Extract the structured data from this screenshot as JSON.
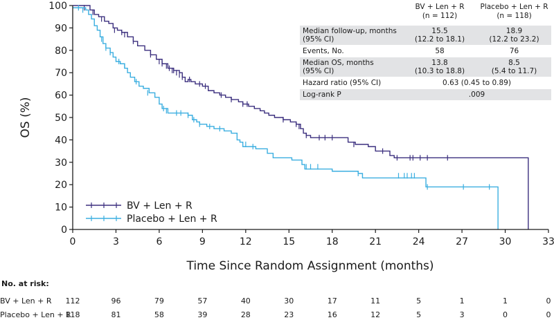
{
  "chart_data": {
    "type": "line",
    "subtype": "kaplan-meier",
    "xlabel": "Time Since Random Assignment (months)",
    "ylabel": "OS (%)",
    "xlim": [
      0,
      33
    ],
    "ylim": [
      0,
      100
    ],
    "xticks": [
      "0",
      "3",
      "6",
      "9",
      "12",
      "15",
      "18",
      "21",
      "24",
      "27",
      "30",
      "33"
    ],
    "yticks": [
      "0",
      "10",
      "20",
      "30",
      "40",
      "50",
      "60",
      "70",
      "80",
      "90",
      "100"
    ],
    "legend_position": "bottom-left",
    "series": [
      {
        "name": "BV + Len + R",
        "color": "#3b2f7e",
        "steps": [
          [
            0,
            100
          ],
          [
            1.2,
            98
          ],
          [
            1.5,
            96
          ],
          [
            1.8,
            95
          ],
          [
            2.2,
            93
          ],
          [
            2.5,
            92
          ],
          [
            2.8,
            90
          ],
          [
            3.1,
            89
          ],
          [
            3.4,
            88
          ],
          [
            3.8,
            86
          ],
          [
            4.2,
            84
          ],
          [
            4.5,
            82
          ],
          [
            5.0,
            80
          ],
          [
            5.4,
            78
          ],
          [
            5.8,
            76
          ],
          [
            6.2,
            74
          ],
          [
            6.6,
            72
          ],
          [
            7.0,
            71
          ],
          [
            7.4,
            70
          ],
          [
            7.6,
            68
          ],
          [
            7.8,
            66
          ],
          [
            8.0,
            67
          ],
          [
            8.2,
            66
          ],
          [
            8.5,
            65
          ],
          [
            9.0,
            64
          ],
          [
            9.4,
            62
          ],
          [
            9.8,
            61
          ],
          [
            10.2,
            60
          ],
          [
            10.6,
            59
          ],
          [
            11.0,
            58
          ],
          [
            11.5,
            57
          ],
          [
            11.8,
            56
          ],
          [
            12.2,
            55
          ],
          [
            12.6,
            54
          ],
          [
            13.0,
            53
          ],
          [
            13.3,
            52
          ],
          [
            13.6,
            51
          ],
          [
            14.0,
            50
          ],
          [
            14.6,
            49
          ],
          [
            15.1,
            48
          ],
          [
            15.5,
            47
          ],
          [
            15.8,
            45
          ],
          [
            16.0,
            43
          ],
          [
            16.2,
            42
          ],
          [
            16.5,
            41
          ],
          [
            19.1,
            39
          ],
          [
            19.6,
            38
          ],
          [
            20.5,
            37
          ],
          [
            21.0,
            35
          ],
          [
            22.0,
            33
          ],
          [
            22.3,
            32
          ],
          [
            31.6,
            0
          ]
        ],
        "censored": [
          [
            0.8,
            99
          ],
          [
            1.4,
            97
          ],
          [
            2.0,
            94
          ],
          [
            2.9,
            89
          ],
          [
            3.4,
            88
          ],
          [
            3.6,
            87
          ],
          [
            4.2,
            84
          ],
          [
            5.4,
            78
          ],
          [
            6.0,
            75
          ],
          [
            6.2,
            74
          ],
          [
            6.5,
            73
          ],
          [
            6.7,
            72
          ],
          [
            6.9,
            71
          ],
          [
            7.0,
            71
          ],
          [
            7.2,
            70
          ],
          [
            7.4,
            69
          ],
          [
            7.6,
            68
          ],
          [
            8.1,
            67
          ],
          [
            8.8,
            65
          ],
          [
            9.2,
            64
          ],
          [
            10.3,
            60
          ],
          [
            11.0,
            58
          ],
          [
            11.8,
            56
          ],
          [
            12.1,
            56
          ],
          [
            14.6,
            49
          ],
          [
            15.5,
            47
          ],
          [
            15.7,
            46
          ],
          [
            16.2,
            42
          ],
          [
            17.1,
            41
          ],
          [
            17.5,
            41
          ],
          [
            18.0,
            41
          ],
          [
            19.5,
            38
          ],
          [
            21.5,
            35
          ],
          [
            22.5,
            32
          ],
          [
            23.4,
            32
          ],
          [
            23.6,
            32
          ],
          [
            24.1,
            32
          ],
          [
            24.6,
            32
          ],
          [
            26.0,
            32
          ]
        ]
      },
      {
        "name": "Placebo + Len + R",
        "color": "#3aaee0",
        "steps": [
          [
            0,
            99
          ],
          [
            0.9,
            98
          ],
          [
            1.1,
            96
          ],
          [
            1.3,
            94
          ],
          [
            1.5,
            91
          ],
          [
            1.7,
            89
          ],
          [
            1.9,
            86
          ],
          [
            2.1,
            83
          ],
          [
            2.3,
            81
          ],
          [
            2.6,
            79
          ],
          [
            2.8,
            77
          ],
          [
            3.0,
            75
          ],
          [
            3.3,
            74
          ],
          [
            3.6,
            72
          ],
          [
            3.8,
            70
          ],
          [
            4.0,
            68
          ],
          [
            4.3,
            66
          ],
          [
            4.6,
            64
          ],
          [
            4.9,
            63
          ],
          [
            5.3,
            61
          ],
          [
            5.7,
            59
          ],
          [
            6.0,
            56
          ],
          [
            6.2,
            54
          ],
          [
            6.6,
            52
          ],
          [
            8.0,
            51
          ],
          [
            8.3,
            49
          ],
          [
            8.6,
            48
          ],
          [
            8.8,
            47
          ],
          [
            9.3,
            46
          ],
          [
            9.8,
            45
          ],
          [
            10.5,
            44
          ],
          [
            11.0,
            43
          ],
          [
            11.4,
            40
          ],
          [
            11.6,
            39
          ],
          [
            11.8,
            37
          ],
          [
            12.7,
            36
          ],
          [
            13.5,
            34
          ],
          [
            13.9,
            32
          ],
          [
            15.2,
            31
          ],
          [
            15.9,
            29
          ],
          [
            16.1,
            27
          ],
          [
            16.8,
            27
          ],
          [
            18.0,
            26
          ],
          [
            19.8,
            25
          ],
          [
            20.0,
            25
          ],
          [
            20.1,
            23
          ],
          [
            24.5,
            19
          ],
          [
            29.5,
            0
          ]
        ],
        "censored": [
          [
            0.4,
            99
          ],
          [
            0.7,
            98
          ],
          [
            2.0,
            85
          ],
          [
            2.3,
            81
          ],
          [
            2.6,
            79
          ],
          [
            3.2,
            75
          ],
          [
            3.6,
            73
          ],
          [
            4.4,
            66
          ],
          [
            5.2,
            61
          ],
          [
            6.3,
            54
          ],
          [
            6.5,
            53
          ],
          [
            7.2,
            52
          ],
          [
            7.5,
            52
          ],
          [
            8.0,
            51
          ],
          [
            8.4,
            49
          ],
          [
            8.8,
            47
          ],
          [
            9.5,
            46
          ],
          [
            10.2,
            45
          ],
          [
            12.0,
            38
          ],
          [
            12.5,
            37
          ],
          [
            16.2,
            28
          ],
          [
            16.5,
            28
          ],
          [
            17.0,
            28
          ],
          [
            19.8,
            25
          ],
          [
            22.6,
            24
          ],
          [
            23.0,
            24
          ],
          [
            23.2,
            24
          ],
          [
            23.5,
            24
          ],
          [
            23.7,
            24
          ],
          [
            24.6,
            19
          ],
          [
            27.1,
            19
          ],
          [
            28.9,
            19
          ]
        ]
      }
    ],
    "stats_table": {
      "header": [
        "",
        "BV + Len + R\n(n = 112)",
        "Placebo + Len + R\n(n = 118)"
      ],
      "rows": [
        {
          "label": "Median follow-up, months\n(95% CI)",
          "a": "15.5\n(12.2 to 18.1)",
          "b": "18.9\n(12.2 to 23.2)"
        },
        {
          "label": "Events, No.",
          "a": "58",
          "b": "76"
        },
        {
          "label": "Median OS, months\n(95% CI)",
          "a": "13.8\n(10.3 to 18.8)",
          "b": "8.5\n(5.4 to 11.7)"
        },
        {
          "label": "Hazard ratio (95% CI)",
          "span": "0.63 (0.45 to 0.89)"
        },
        {
          "label": "Log-rank P",
          "span": ".009"
        }
      ]
    },
    "at_risk": {
      "title": "No. at risk:",
      "times": [
        0,
        3,
        6,
        9,
        12,
        15,
        18,
        21,
        24,
        27,
        30,
        33
      ],
      "rows": [
        {
          "name": "BV + Len + R",
          "values": [
            112,
            96,
            79,
            57,
            40,
            30,
            17,
            11,
            5,
            1,
            1,
            0
          ]
        },
        {
          "name": "Placebo + Len + R",
          "values": [
            118,
            81,
            58,
            39,
            28,
            23,
            16,
            12,
            5,
            3,
            0,
            0
          ]
        }
      ]
    }
  }
}
